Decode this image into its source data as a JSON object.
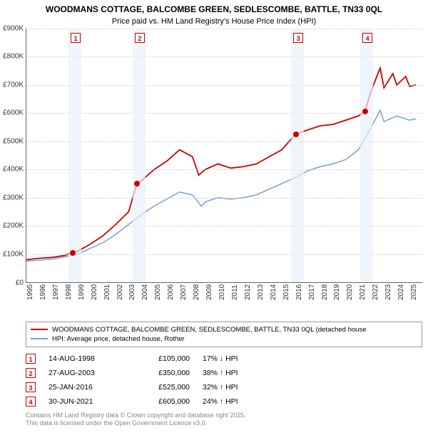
{
  "title": "WOODMANS COTTAGE, BALCOMBE GREEN, SEDLESCOMBE, BATTLE, TN33 0QL",
  "subtitle": "Price paid vs. HM Land Registry's House Price Index (HPI)",
  "chart": {
    "type": "line",
    "ylim": [
      0,
      900000
    ],
    "ytick_step": 100000,
    "yticks": [
      "£0",
      "£100K",
      "£200K",
      "£300K",
      "£400K",
      "£500K",
      "£600K",
      "£700K",
      "£800K",
      "£900K"
    ],
    "xlim": [
      1995,
      2026
    ],
    "xticks": [
      1995,
      1996,
      1997,
      1998,
      1999,
      2000,
      2001,
      2002,
      2003,
      2004,
      2005,
      2006,
      2007,
      2008,
      2009,
      2010,
      2011,
      2012,
      2013,
      2014,
      2015,
      2016,
      2017,
      2018,
      2019,
      2020,
      2021,
      2022,
      2023,
      2024,
      2025
    ],
    "background_color": "#ffffff",
    "grid_color": "#cccccc",
    "band_color": "#eaf0fa",
    "bands": [
      {
        "start": 1998.3,
        "end": 1999.3,
        "num": "1"
      },
      {
        "start": 2003.3,
        "end": 2004.3,
        "num": "2"
      },
      {
        "start": 2015.7,
        "end": 2016.7,
        "num": "3"
      },
      {
        "start": 2021.1,
        "end": 2022.1,
        "num": "4"
      }
    ],
    "series": [
      {
        "name": "WOODMANS COTTAGE, BALCOMBE GREEN, SEDLESCOMBE, BATTLE, TN33 0QL (detached house",
        "color": "#cc0000",
        "line_width": 1.8,
        "points": [
          [
            1995,
            80000
          ],
          [
            1996,
            85000
          ],
          [
            1997,
            88000
          ],
          [
            1998,
            95000
          ],
          [
            1998.6,
            105000
          ],
          [
            1999,
            110000
          ],
          [
            2000,
            135000
          ],
          [
            2001,
            165000
          ],
          [
            2002,
            205000
          ],
          [
            2003,
            250000
          ],
          [
            2003.65,
            350000
          ],
          [
            2004,
            360000
          ],
          [
            2005,
            400000
          ],
          [
            2006,
            430000
          ],
          [
            2007,
            470000
          ],
          [
            2008,
            445000
          ],
          [
            2008.5,
            380000
          ],
          [
            2009,
            400000
          ],
          [
            2010,
            420000
          ],
          [
            2011,
            405000
          ],
          [
            2012,
            410000
          ],
          [
            2013,
            420000
          ],
          [
            2014,
            445000
          ],
          [
            2015,
            470000
          ],
          [
            2016.07,
            525000
          ],
          [
            2017,
            540000
          ],
          [
            2018,
            555000
          ],
          [
            2019,
            560000
          ],
          [
            2020,
            575000
          ],
          [
            2021,
            590000
          ],
          [
            2021.5,
            605000
          ],
          [
            2022,
            680000
          ],
          [
            2022.7,
            760000
          ],
          [
            2023,
            690000
          ],
          [
            2023.7,
            740000
          ],
          [
            2024,
            700000
          ],
          [
            2024.7,
            730000
          ],
          [
            2025,
            695000
          ],
          [
            2025.5,
            700000
          ]
        ],
        "markers": [
          [
            1998.6,
            105000
          ],
          [
            2003.65,
            350000
          ],
          [
            2016.07,
            525000
          ],
          [
            2021.5,
            605000
          ]
        ]
      },
      {
        "name": "HPI: Average price, detached house, Rother",
        "color": "#7a9fd4",
        "line_width": 1.5,
        "points": [
          [
            1995,
            75000
          ],
          [
            1996,
            78000
          ],
          [
            1997,
            82000
          ],
          [
            1998,
            90000
          ],
          [
            1999,
            100000
          ],
          [
            2000,
            120000
          ],
          [
            2001,
            140000
          ],
          [
            2002,
            170000
          ],
          [
            2003,
            205000
          ],
          [
            2004,
            240000
          ],
          [
            2005,
            270000
          ],
          [
            2006,
            295000
          ],
          [
            2007,
            320000
          ],
          [
            2008,
            310000
          ],
          [
            2008.7,
            270000
          ],
          [
            2009,
            285000
          ],
          [
            2010,
            300000
          ],
          [
            2011,
            295000
          ],
          [
            2012,
            300000
          ],
          [
            2013,
            310000
          ],
          [
            2014,
            330000
          ],
          [
            2015,
            350000
          ],
          [
            2016,
            370000
          ],
          [
            2017,
            395000
          ],
          [
            2018,
            410000
          ],
          [
            2019,
            420000
          ],
          [
            2020,
            435000
          ],
          [
            2021,
            470000
          ],
          [
            2022,
            550000
          ],
          [
            2022.7,
            610000
          ],
          [
            2023,
            570000
          ],
          [
            2024,
            590000
          ],
          [
            2025,
            575000
          ],
          [
            2025.5,
            580000
          ]
        ]
      }
    ]
  },
  "legend": [
    {
      "color": "#cc0000",
      "label": "WOODMANS COTTAGE, BALCOMBE GREEN, SEDLESCOMBE, BATTLE, TN33 0QL (detached house"
    },
    {
      "color": "#7a9fd4",
      "label": "HPI: Average price, detached house, Rother"
    }
  ],
  "sales": [
    {
      "num": "1",
      "date": "14-AUG-1998",
      "price": "£105,000",
      "pct": "17% ↓ HPI"
    },
    {
      "num": "2",
      "date": "27-AUG-2003",
      "price": "£350,000",
      "pct": "38% ↑ HPI"
    },
    {
      "num": "3",
      "date": "25-JAN-2016",
      "price": "£525,000",
      "pct": "32% ↑ HPI"
    },
    {
      "num": "4",
      "date": "30-JUN-2021",
      "price": "£605,000",
      "pct": "24% ↑ HPI"
    }
  ],
  "footer1": "Contains HM Land Registry data © Crown copyright and database right 2025.",
  "footer2": "This data is licensed under the Open Government Licence v3.0."
}
